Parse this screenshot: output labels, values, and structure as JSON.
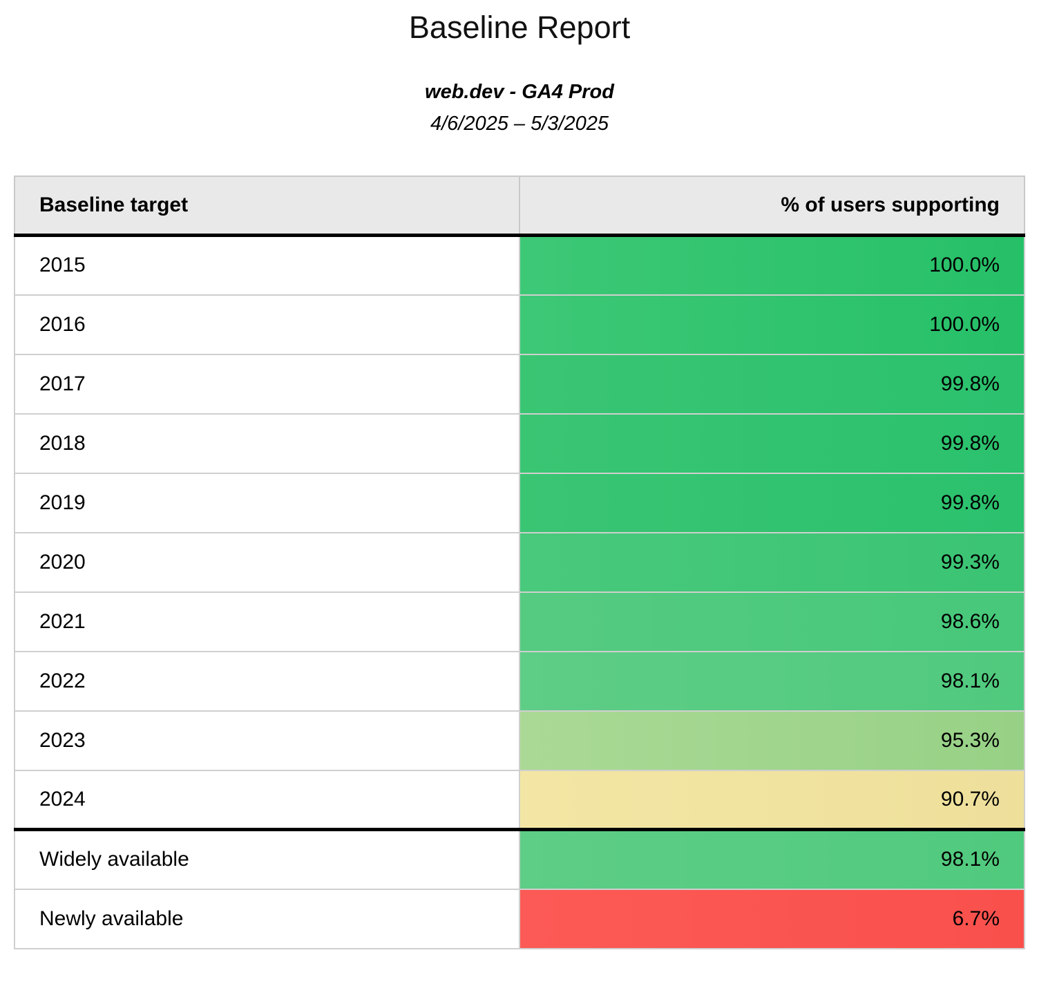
{
  "report": {
    "title": "Baseline Report",
    "property": "web.dev - GA4 Prod",
    "date_range": "4/6/2025 – 5/3/2025"
  },
  "table": {
    "columns": [
      {
        "label": "Baseline target"
      },
      {
        "label": "% of users supporting"
      }
    ],
    "rows": [
      {
        "label": "2015",
        "value": "100.0%",
        "group": "years",
        "bg_left": "#3dc876",
        "bg_right": "#26c068"
      },
      {
        "label": "2016",
        "value": "100.0%",
        "group": "years",
        "bg_left": "#3dc876",
        "bg_right": "#26c068"
      },
      {
        "label": "2017",
        "value": "99.8%",
        "group": "years",
        "bg_left": "#3ac573",
        "bg_right": "#2bc16d"
      },
      {
        "label": "2018",
        "value": "99.8%",
        "group": "years",
        "bg_left": "#3ac573",
        "bg_right": "#2bc16d"
      },
      {
        "label": "2019",
        "value": "99.8%",
        "group": "years",
        "bg_left": "#3ac573",
        "bg_right": "#2bc16d"
      },
      {
        "label": "2020",
        "value": "99.3%",
        "group": "years",
        "bg_left": "#49c97c",
        "bg_right": "#3ac473"
      },
      {
        "label": "2021",
        "value": "98.6%",
        "group": "years",
        "bg_left": "#55cb81",
        "bg_right": "#47c87a"
      },
      {
        "label": "2022",
        "value": "98.1%",
        "group": "years",
        "bg_left": "#5ecd86",
        "bg_right": "#50ca7e"
      },
      {
        "label": "2023",
        "value": "95.3%",
        "group": "years",
        "bg_left": "#aad995",
        "bg_right": "#97d186"
      },
      {
        "label": "2024",
        "value": "90.7%",
        "group": "years",
        "bg_left": "#f3e6a4",
        "bg_right": "#eee09b"
      },
      {
        "label": "Widely available",
        "value": "98.1%",
        "group": "summary",
        "bg_left": "#5ecd86",
        "bg_right": "#50ca7e"
      },
      {
        "label": "Newly available",
        "value": "6.7%",
        "group": "summary",
        "bg_left": "#fc5a56",
        "bg_right": "#f9504c"
      }
    ]
  },
  "colors": {
    "header_background": "#e9e9e9",
    "grid_line": "#cfcfcf",
    "section_divider": "#000000",
    "text": "#000000",
    "green_max": "#26c068",
    "yellow_mid": "#f3e6a4",
    "red_min": "#fc5a56"
  },
  "chart_data": {
    "type": "table",
    "title": "Baseline Report",
    "subtitle": "web.dev - GA4 Prod",
    "date_range": "4/6/2025 – 5/3/2025",
    "columns": [
      "Baseline target",
      "% of users supporting"
    ],
    "rows": [
      [
        "2015",
        100.0
      ],
      [
        "2016",
        100.0
      ],
      [
        "2017",
        99.8
      ],
      [
        "2018",
        99.8
      ],
      [
        "2019",
        99.8
      ],
      [
        "2020",
        99.3
      ],
      [
        "2021",
        98.6
      ],
      [
        "2022",
        98.1
      ],
      [
        "2023",
        95.3
      ],
      [
        "2024",
        90.7
      ],
      [
        "Widely available",
        98.1
      ],
      [
        "Newly available",
        6.7
      ]
    ]
  }
}
